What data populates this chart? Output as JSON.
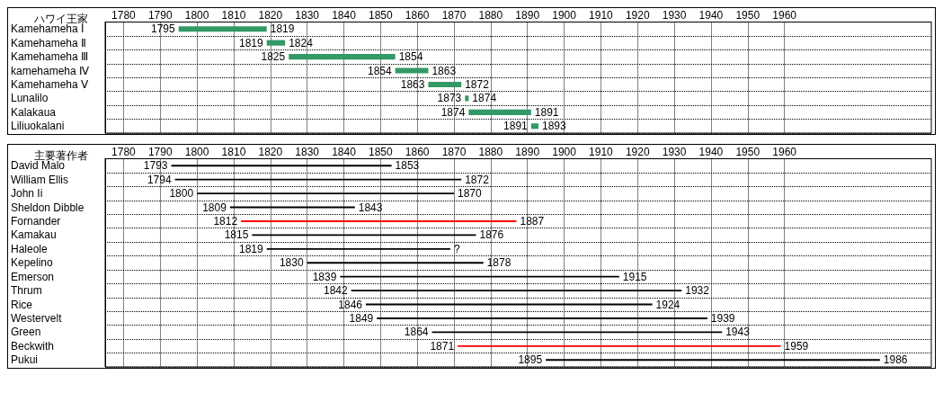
{
  "chart_data": [
    {
      "type": "bar",
      "orientation": "horizontal",
      "ylabel": "ハワイ王家",
      "categories": [
        "Kamehameha Ⅰ",
        "Kamehameha Ⅱ",
        "Kamehameha Ⅲ",
        "kamehameha Ⅳ",
        "Kamehameha Ⅴ",
        "Lunalilo",
        "Kalakaua",
        "Liliuokalani"
      ],
      "base": [
        1795,
        1819,
        1825,
        1854,
        1863,
        1873,
        1874,
        1891
      ],
      "values": [
        24,
        5,
        29,
        9,
        9,
        1,
        17,
        2
      ],
      "value_labels": [
        "1819",
        "1824",
        "1854",
        "1863",
        "1872",
        "1874",
        "1891",
        "1893"
      ],
      "annotations": [
        {
          "text": "1795",
          "x": 1795,
          "y": "Kamehameha Ⅰ"
        },
        {
          "text": "1819",
          "x": 1819,
          "y": "Kamehameha Ⅱ"
        },
        {
          "text": "1825",
          "x": 1825,
          "y": "Kamehameha Ⅲ"
        },
        {
          "text": "1854",
          "x": 1854,
          "y": "kamehameha Ⅳ"
        },
        {
          "text": "1863",
          "x": 1863,
          "y": "Kamehameha Ⅴ"
        },
        {
          "text": "1873",
          "x": 1873,
          "y": "Lunalilo"
        },
        {
          "text": "1874",
          "x": 1874,
          "y": "Kalakaua"
        },
        {
          "text": "1891",
          "x": 1891,
          "y": "Liliuokalani"
        }
      ],
      "colors": [
        "#339966",
        "#339966",
        "#339966",
        "#339966",
        "#339966",
        "#339966",
        "#339966",
        "#339966"
      ],
      "xlim": [
        1775,
        2000
      ],
      "xticks": [
        1780,
        1790,
        1800,
        1810,
        1820,
        1830,
        1840,
        1850,
        1860,
        1870,
        1880,
        1890,
        1900,
        1910,
        1920,
        1930,
        1940,
        1950,
        1960
      ],
      "grid": true
    },
    {
      "type": "bar",
      "orientation": "horizontal",
      "ylabel": "主要著作者",
      "categories": [
        "David Malo",
        "William Ellis",
        "John Ii",
        "Sheldon Dibble",
        "Fornander",
        "Kamakau",
        "Haleole",
        "Kepelino",
        "Emerson",
        "Thrum",
        "Rice",
        "Westervelt",
        "Green",
        "Beckwith",
        "Pukui"
      ],
      "base": [
        1793,
        1794,
        1800,
        1809,
        1812,
        1815,
        1819,
        1830,
        1839,
        1842,
        1846,
        1849,
        1864,
        1871,
        1895
      ],
      "values": [
        60,
        78,
        70,
        34,
        75,
        61,
        50,
        48,
        76,
        90,
        78,
        90,
        79,
        88,
        91
      ],
      "value_labels": [
        "1853",
        "1872",
        "1870",
        "1843",
        "1887",
        "1876",
        "?",
        "1878",
        "1915",
        "1932",
        "1924",
        "1939",
        "1943",
        "1959",
        "1986"
      ],
      "annotations": [
        {
          "text": "1793",
          "x": 1793,
          "y": "David Malo"
        },
        {
          "text": "1794",
          "x": 1794,
          "y": "William Ellis"
        },
        {
          "text": "1800",
          "x": 1800,
          "y": "John Ii"
        },
        {
          "text": "1809",
          "x": 1809,
          "y": "Sheldon Dibble"
        },
        {
          "text": "1812",
          "x": 1812,
          "y": "Fornander"
        },
        {
          "text": "1815",
          "x": 1815,
          "y": "Kamakau"
        },
        {
          "text": "1819",
          "x": 1819,
          "y": "Haleole"
        },
        {
          "text": "1830",
          "x": 1830,
          "y": "Kepelino"
        },
        {
          "text": "1839",
          "x": 1839,
          "y": "Emerson"
        },
        {
          "text": "1842",
          "x": 1842,
          "y": "Thrum"
        },
        {
          "text": "1846",
          "x": 1846,
          "y": "Rice"
        },
        {
          "text": "1849",
          "x": 1849,
          "y": "Westervelt"
        },
        {
          "text": "1864",
          "x": 1864,
          "y": "Green"
        },
        {
          "text": "1871",
          "x": 1871,
          "y": "Beckwith"
        },
        {
          "text": "1895",
          "x": 1895,
          "y": "Pukui"
        }
      ],
      "colors": [
        "#000000",
        "#000000",
        "#000000",
        "#000000",
        "#ff0000",
        "#000000",
        "#000000",
        "#000000",
        "#000000",
        "#000000",
        "#000000",
        "#000000",
        "#000000",
        "#ff0000",
        "#000000"
      ],
      "xlim": [
        1775,
        2000
      ],
      "xticks": [
        1780,
        1790,
        1800,
        1810,
        1820,
        1830,
        1840,
        1850,
        1860,
        1870,
        1880,
        1890,
        1900,
        1910,
        1920,
        1930,
        1940,
        1950,
        1960
      ],
      "grid": true
    }
  ]
}
